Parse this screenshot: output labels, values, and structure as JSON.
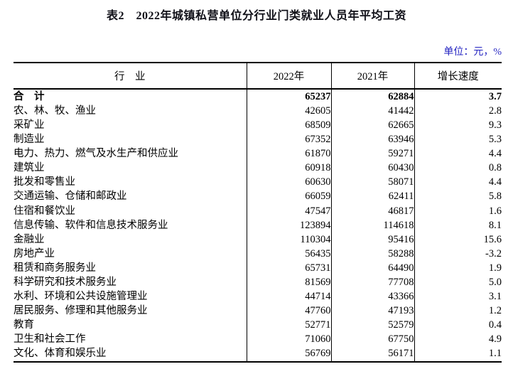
{
  "page": {
    "title": "表2　2022年城镇私营单位分行业门类就业人员年平均工资",
    "unit_note": "单位：元，%"
  },
  "colors": {
    "unit_note_blue": "#2323c1",
    "text": "#000000",
    "rule": "#000000"
  },
  "table": {
    "columns": [
      "行　业",
      "2022年",
      "2021年",
      "增长速度"
    ],
    "rows": [
      {
        "industry": "合　计",
        "y2022": "65237",
        "y2021": "62884",
        "growth": "3.7",
        "bold": true
      },
      {
        "industry": "农、林、牧、渔业",
        "y2022": "42605",
        "y2021": "41442",
        "growth": "2.8"
      },
      {
        "industry": "采矿业",
        "y2022": "68509",
        "y2021": "62665",
        "growth": "9.3"
      },
      {
        "industry": "制造业",
        "y2022": "67352",
        "y2021": "63946",
        "growth": "5.3"
      },
      {
        "industry": "电力、热力、燃气及水生产和供应业",
        "y2022": "61870",
        "y2021": "59271",
        "growth": "4.4"
      },
      {
        "industry": "建筑业",
        "y2022": "60918",
        "y2021": "60430",
        "growth": "0.8"
      },
      {
        "industry": "批发和零售业",
        "y2022": "60630",
        "y2021": "58071",
        "growth": "4.4"
      },
      {
        "industry": "交通运输、仓储和邮政业",
        "y2022": "66059",
        "y2021": "62411",
        "growth": "5.8"
      },
      {
        "industry": "住宿和餐饮业",
        "y2022": "47547",
        "y2021": "46817",
        "growth": "1.6"
      },
      {
        "industry": "信息传输、软件和信息技术服务业",
        "y2022": "123894",
        "y2021": "114618",
        "growth": "8.1"
      },
      {
        "industry": "金融业",
        "y2022": "110304",
        "y2021": "95416",
        "growth": "15.6"
      },
      {
        "industry": "房地产业",
        "y2022": "56435",
        "y2021": "58288",
        "growth": "-3.2"
      },
      {
        "industry": "租赁和商务服务业",
        "y2022": "65731",
        "y2021": "64490",
        "growth": "1.9"
      },
      {
        "industry": "科学研究和技术服务业",
        "y2022": "81569",
        "y2021": "77708",
        "growth": "5.0"
      },
      {
        "industry": "水利、环境和公共设施管理业",
        "y2022": "44714",
        "y2021": "43366",
        "growth": "3.1"
      },
      {
        "industry": "居民服务、修理和其他服务业",
        "y2022": "47760",
        "y2021": "47193",
        "growth": "1.2"
      },
      {
        "industry": "教育",
        "y2022": "52771",
        "y2021": "52579",
        "growth": "0.4"
      },
      {
        "industry": "卫生和社会工作",
        "y2022": "71060",
        "y2021": "67750",
        "growth": "4.9"
      },
      {
        "industry": "文化、体育和娱乐业",
        "y2022": "56769",
        "y2021": "56171",
        "growth": "1.1"
      }
    ]
  }
}
